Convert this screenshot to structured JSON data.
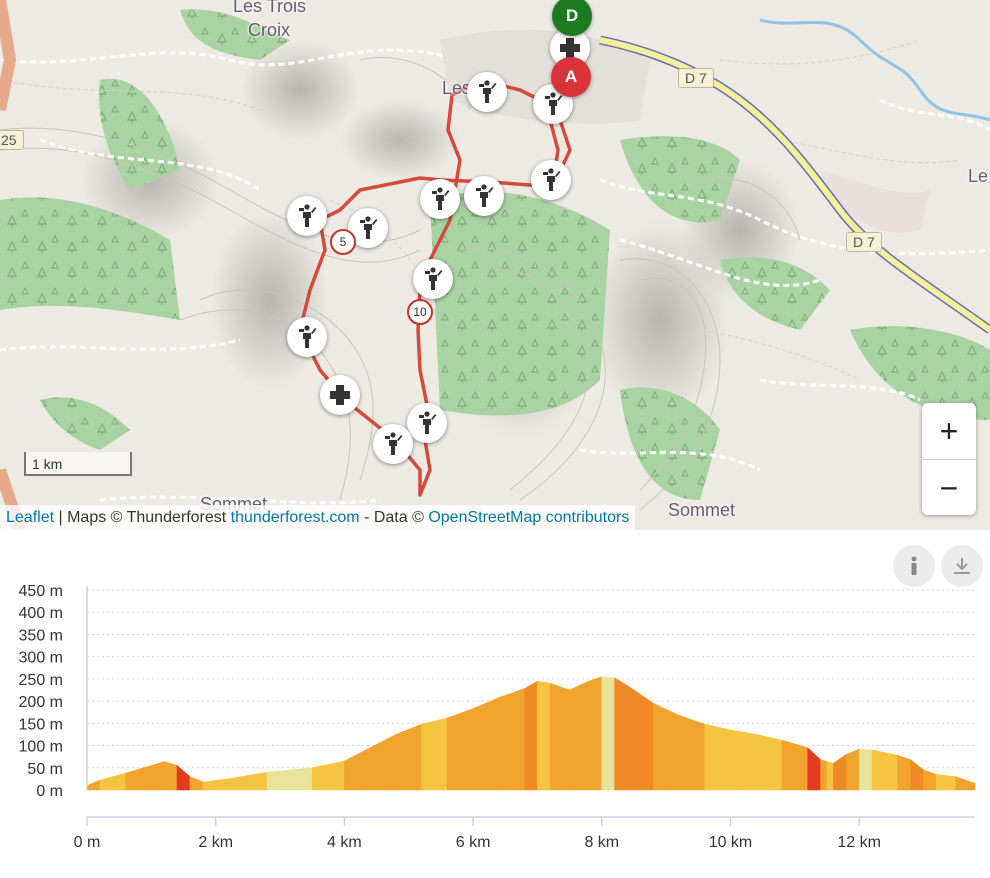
{
  "map": {
    "labels": [
      "Les Trois",
      "Croix",
      "Les",
      "Le",
      "Sommet",
      "Sommet"
    ],
    "roads": [
      "25",
      "D 7",
      "D 7"
    ],
    "km_markers": [
      "5",
      "10"
    ],
    "start_label": "D",
    "end_label": "A",
    "scale_label": "1 km",
    "zoom_in": "+",
    "zoom_out": "−",
    "attribution": {
      "leaflet": "Leaflet",
      "sep": " | Maps © Thunderforest ",
      "tf": "thunderforest.com",
      "data": " - Data © ",
      "osm": "OpenStreetMap contributors"
    },
    "colors": {
      "route": "#d44a3c",
      "start": "#1e7a1e",
      "end": "#d9343a",
      "link": "#0078a8"
    },
    "icons": [
      "walker-icon",
      "first-aid-icon"
    ]
  },
  "profile": {
    "buttons": {
      "info": "info-icon",
      "download": "download-icon"
    }
  },
  "chart_data": {
    "type": "area",
    "title": "",
    "xlabel": "",
    "ylabel": "",
    "xlim": [
      0,
      13.8
    ],
    "ylim": [
      0,
      450
    ],
    "y_ticks": [
      "0 m",
      "50 m",
      "100 m",
      "150 m",
      "200 m",
      "250 m",
      "300 m",
      "350 m",
      "400 m",
      "450 m"
    ],
    "x_ticks": [
      "0 m",
      "2 km",
      "4 km",
      "6 km",
      "8 km",
      "10 km",
      "12 km"
    ],
    "x_tick_values": [
      0,
      2,
      4,
      6,
      8,
      10,
      12
    ],
    "y_tick_values": [
      0,
      50,
      100,
      150,
      200,
      250,
      300,
      350,
      400,
      450
    ],
    "grid": true,
    "x": [
      0,
      0.2,
      0.6,
      1.0,
      1.2,
      1.4,
      1.6,
      1.8,
      2.2,
      2.8,
      3.5,
      4.0,
      4.4,
      4.8,
      5.2,
      5.6,
      6.0,
      6.4,
      6.8,
      7.0,
      7.2,
      7.5,
      7.8,
      8.0,
      8.2,
      8.4,
      8.8,
      9.2,
      9.6,
      10.0,
      10.4,
      10.8,
      11.2,
      11.4,
      11.6,
      11.8,
      12.0,
      12.2,
      12.6,
      12.8,
      13.0,
      13.2,
      13.5,
      13.8
    ],
    "y": [
      10,
      22,
      38,
      55,
      64,
      55,
      30,
      18,
      25,
      40,
      50,
      65,
      95,
      125,
      148,
      162,
      183,
      208,
      228,
      245,
      240,
      225,
      245,
      255,
      252,
      235,
      195,
      168,
      148,
      135,
      125,
      112,
      95,
      68,
      60,
      80,
      92,
      90,
      78,
      68,
      45,
      35,
      30,
      15
    ],
    "band_colors": [
      "#e8e39a",
      "#f5c542",
      "#f0a42e",
      "#ef8a26",
      "#e43a22"
    ]
  }
}
